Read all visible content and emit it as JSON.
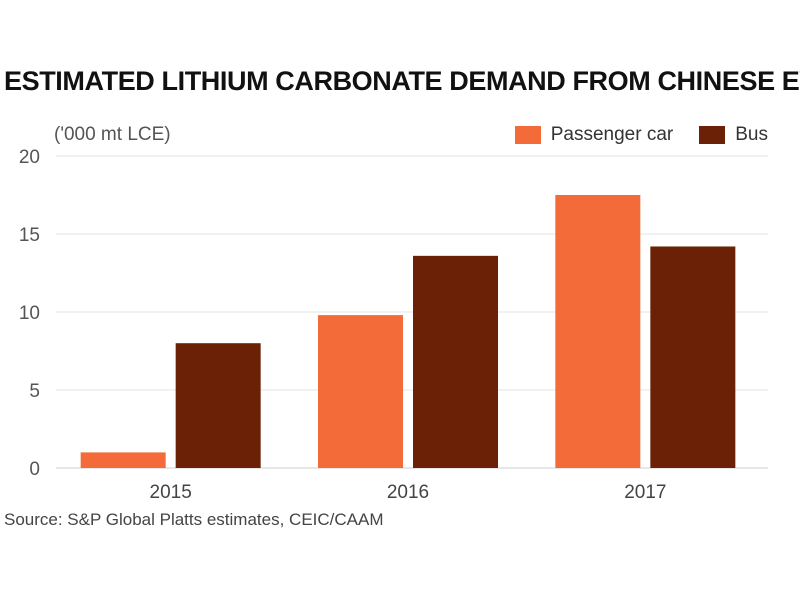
{
  "title": "ESTIMATED LITHIUM CARBONATE DEMAND FROM CHINESE EVS",
  "unit_label": "('000 mt LCE)",
  "source": "Source: S&P Global Platts estimates, CEIC/CAAM",
  "legend": [
    {
      "name": "Passenger car",
      "color": "#F26B38"
    },
    {
      "name": "Bus",
      "color": "#6B2106"
    }
  ],
  "chart_data": {
    "type": "bar",
    "title": "ESTIMATED LITHIUM CARBONATE DEMAND FROM CHINESE EVS",
    "ylabel": "('000 mt LCE)",
    "xlabel": "",
    "categories": [
      "2015",
      "2016",
      "2017"
    ],
    "series": [
      {
        "name": "Passenger car",
        "values": [
          1.0,
          9.8,
          17.5
        ],
        "color": "#F26B38"
      },
      {
        "name": "Bus",
        "values": [
          8.0,
          13.6,
          14.2
        ],
        "color": "#6B2106"
      }
    ],
    "ylim": [
      0,
      20
    ],
    "yticks": [
      0,
      5,
      10,
      15,
      20
    ],
    "grid": true,
    "legend_position": "top-right"
  }
}
